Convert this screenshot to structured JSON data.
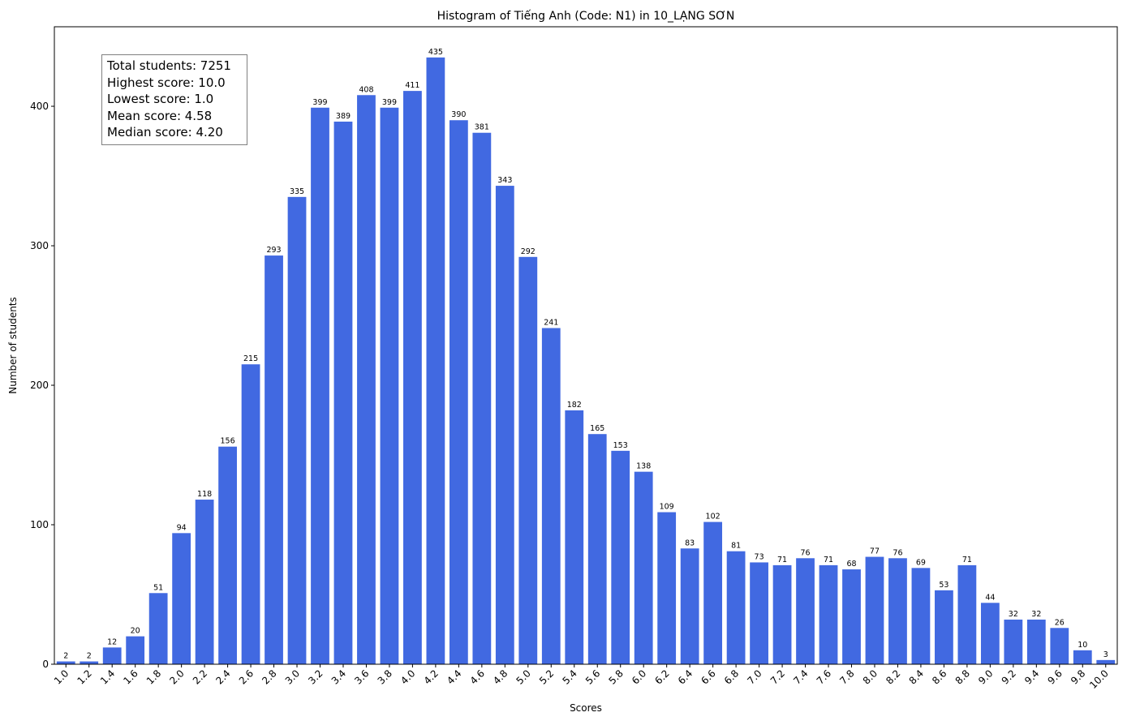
{
  "chart_data": {
    "type": "bar",
    "title": "Histogram of Tiếng Anh (Code: N1) in 10_LẠNG SƠN",
    "xlabel": "Scores",
    "ylabel": "Number of students",
    "ylim": [
      0,
      457
    ],
    "y_ticks": [
      "0",
      "100",
      "200",
      "300",
      "400"
    ],
    "bar_color": "#4169e1",
    "grid": false,
    "categories": [
      "1.0",
      "1.2",
      "1.4",
      "1.6",
      "1.8",
      "2.0",
      "2.2",
      "2.4",
      "2.6",
      "2.8",
      "3.0",
      "3.2",
      "3.4",
      "3.6",
      "3.8",
      "4.0",
      "4.2",
      "4.4",
      "4.6",
      "4.8",
      "5.0",
      "5.2",
      "5.4",
      "5.6",
      "5.8",
      "6.0",
      "6.2",
      "6.4",
      "6.6",
      "6.8",
      "7.0",
      "7.2",
      "7.4",
      "7.6",
      "7.8",
      "8.0",
      "8.2",
      "8.4",
      "8.6",
      "8.8",
      "9.0",
      "9.2",
      "9.4",
      "9.6",
      "9.8",
      "10.0"
    ],
    "values": [
      2,
      2,
      12,
      20,
      51,
      94,
      118,
      156,
      215,
      293,
      335,
      399,
      389,
      408,
      399,
      411,
      435,
      390,
      381,
      343,
      292,
      241,
      182,
      165,
      153,
      138,
      109,
      83,
      102,
      81,
      73,
      71,
      76,
      71,
      68,
      77,
      76,
      69,
      53,
      71,
      44,
      32,
      32,
      26,
      10,
      3
    ],
    "stats": {
      "total": "Total students: 7251",
      "highest": "Highest score: 10.0",
      "lowest": "Lowest score: 1.0",
      "mean": "Mean score: 4.58",
      "median": "Median score: 4.20"
    }
  }
}
